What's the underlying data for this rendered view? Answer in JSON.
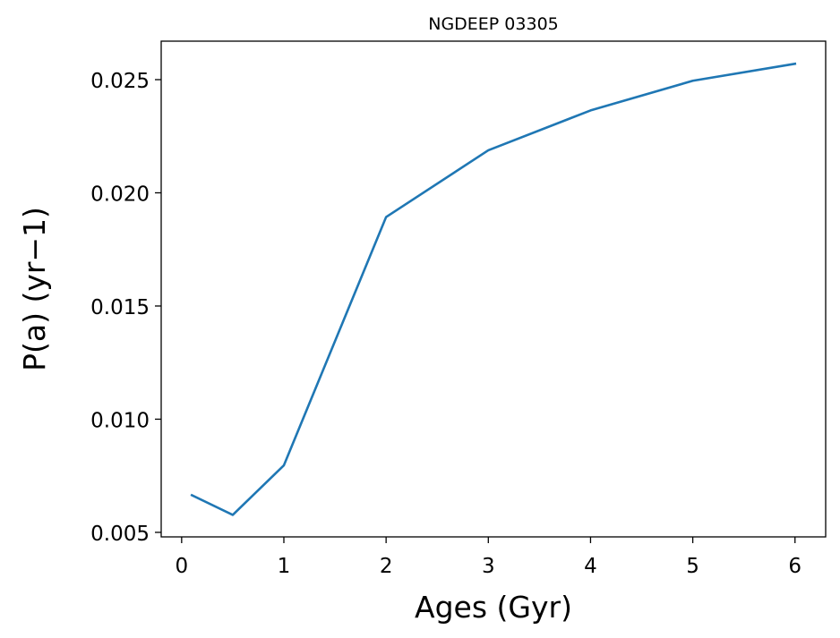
{
  "chart_data": {
    "type": "line",
    "title": "NGDEEP 03305",
    "xlabel": "Ages (Gyr)",
    "ylabel": "P(a) (yr−1)",
    "xlim": [
      -0.2,
      6.3
    ],
    "ylim": [
      0.0048,
      0.0267
    ],
    "xticks": [
      0,
      1,
      2,
      3,
      4,
      5,
      6
    ],
    "xtick_labels": [
      "0",
      "1",
      "2",
      "3",
      "4",
      "5",
      "6"
    ],
    "yticks": [
      0.005,
      0.01,
      0.015,
      0.02,
      0.025
    ],
    "ytick_labels": [
      "0.005",
      "0.010",
      "0.015",
      "0.020",
      "0.025"
    ],
    "grid": false,
    "series": [
      {
        "color": "#1f77b4",
        "x": [
          0.1,
          0.5,
          1,
          2,
          3,
          4,
          5,
          6
        ],
        "y": [
          0.00664,
          0.00577,
          0.00796,
          0.01893,
          0.02188,
          0.02364,
          0.02495,
          0.0257
        ]
      }
    ]
  }
}
